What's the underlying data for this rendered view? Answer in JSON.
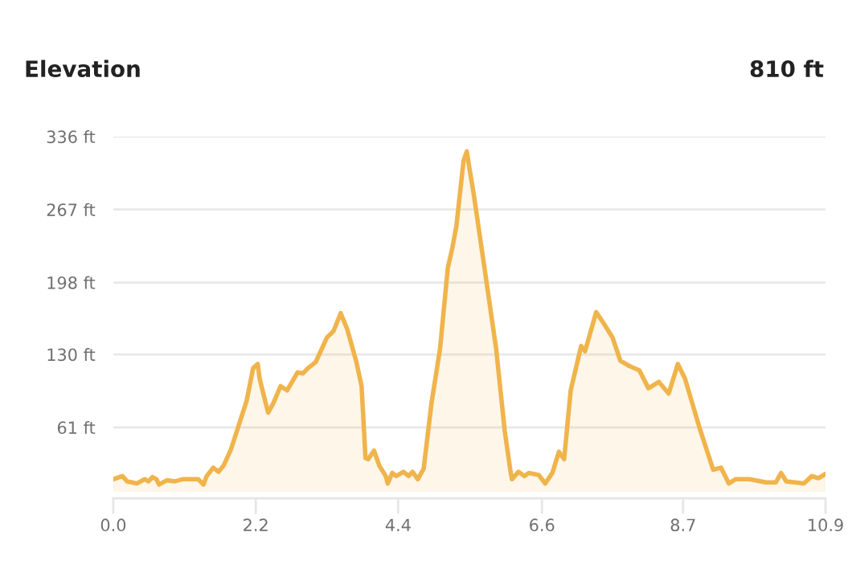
{
  "chart_data": {
    "type": "area",
    "title": "Elevation",
    "annotations": [
      "810 ft"
    ],
    "x": [
      0.0,
      0.14,
      0.21,
      0.36,
      0.48,
      0.54,
      0.6,
      0.66,
      0.7,
      0.82,
      0.94,
      1.06,
      1.3,
      1.38,
      1.43,
      1.53,
      1.61,
      1.69,
      1.8,
      1.92,
      2.04,
      2.14,
      2.21,
      2.24,
      2.3,
      2.37,
      2.45,
      2.56,
      2.66,
      2.82,
      2.9,
      2.98,
      3.1,
      3.27,
      3.37,
      3.48,
      3.58,
      3.72,
      3.8,
      3.86,
      3.9,
      3.99,
      4.07,
      4.17,
      4.2,
      4.27,
      4.33,
      4.44,
      4.52,
      4.58,
      4.66,
      4.75,
      4.87,
      5.0,
      5.12,
      5.19,
      5.25,
      5.36,
      5.41,
      5.44,
      5.52,
      5.68,
      5.86,
      5.99,
      6.08,
      6.1,
      6.2,
      6.29,
      6.36,
      6.51,
      6.61,
      6.72,
      6.82,
      6.9,
      7.0,
      7.16,
      7.22,
      7.39,
      7.52,
      7.64,
      7.76,
      7.9,
      8.05,
      8.19,
      8.35,
      8.5,
      8.64,
      8.75,
      8.97,
      9.18,
      9.3,
      9.42,
      9.52,
      9.74,
      9.99,
      10.14,
      10.22,
      10.3,
      10.57,
      10.69,
      10.79,
      10.9
    ],
    "series": [
      {
        "color": "#f0b44c",
        "values": [
          12,
          15,
          10,
          8,
          12,
          10,
          14,
          12,
          7,
          11,
          10,
          12,
          12,
          7,
          15,
          23,
          19,
          25,
          40,
          63,
          86,
          117,
          121,
          107,
          92,
          75,
          84,
          100,
          96,
          113,
          112,
          117,
          123,
          146,
          152,
          169,
          154,
          123,
          100,
          32,
          31,
          39,
          25,
          15,
          8,
          18,
          15,
          19,
          15,
          19,
          12,
          22,
          84,
          135,
          212,
          231,
          251,
          313,
          322,
          310,
          280,
          212,
          135,
          58,
          19,
          12,
          19,
          15,
          18,
          16,
          8,
          18,
          38,
          31,
          96,
          138,
          133,
          170,
          158,
          146,
          124,
          119,
          115,
          98,
          104,
          93,
          121,
          107,
          61,
          21,
          23,
          8,
          12,
          12,
          9,
          9,
          18,
          10,
          8,
          15,
          13,
          17
        ]
      }
    ],
    "xlim": [
      0,
      10.9
    ],
    "xticks": [
      {
        "value": 0,
        "label": "0.0"
      },
      {
        "value": 2.18,
        "label": "2.2"
      },
      {
        "value": 4.36,
        "label": "4.4"
      },
      {
        "value": 6.56,
        "label": "6.6"
      },
      {
        "value": 8.72,
        "label": "8.7"
      },
      10.9
    ],
    "ylim": [
      -6,
      336
    ],
    "yticks": [
      {
        "value": 61,
        "label": "61 ft"
      },
      {
        "value": 130,
        "label": "130 ft"
      },
      {
        "value": 198,
        "label": "198 ft"
      },
      {
        "value": 267,
        "label": "267 ft"
      },
      {
        "value": 336,
        "label": "336 ft"
      }
    ],
    "grid": "y"
  }
}
